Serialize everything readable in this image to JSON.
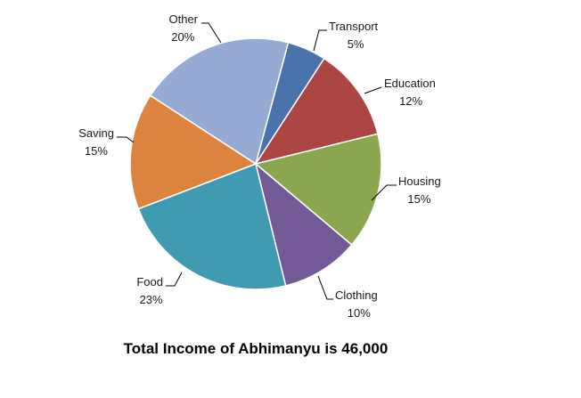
{
  "chart_data": {
    "type": "pie",
    "title": "Total Income of Abhimanyu is 46,000",
    "start_angle_deg": 15,
    "direction": "clockwise",
    "slices": [
      {
        "label": "Transport",
        "value": 5,
        "pct_label": "5%",
        "color": "#4a72ac"
      },
      {
        "label": "Education",
        "value": 12,
        "pct_label": "12%",
        "color": "#ab4644"
      },
      {
        "label": "Housing",
        "value": 15,
        "pct_label": "15%",
        "color": "#8aa64f"
      },
      {
        "label": "Clothing",
        "value": 10,
        "pct_label": "10%",
        "color": "#735a96"
      },
      {
        "label": "Food",
        "value": 23,
        "pct_label": "23%",
        "color": "#3f9bb1"
      },
      {
        "label": "Saving",
        "value": 15,
        "pct_label": "15%",
        "color": "#dd8540"
      },
      {
        "label": "Other",
        "value": 20,
        "pct_label": "20%",
        "color": "#96abd3"
      }
    ]
  }
}
